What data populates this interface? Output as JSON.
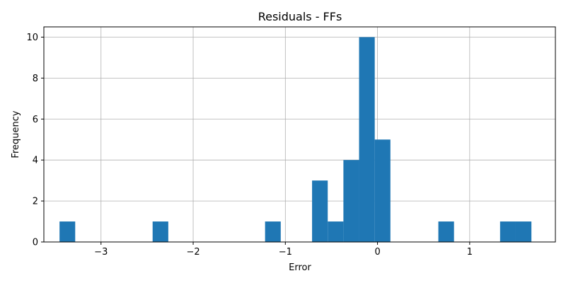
{
  "chart_data": {
    "type": "bar",
    "title": "Residuals - FFs",
    "xlabel": "Error",
    "ylabel": "Frequency",
    "xlim": [
      -3.62,
      1.93
    ],
    "ylim": [
      0,
      10.5
    ],
    "xticks": [
      -3,
      -2,
      -1,
      0,
      1
    ],
    "xtick_labels": [
      "−3",
      "−2",
      "−1",
      "0",
      "1"
    ],
    "yticks": [
      0,
      2,
      4,
      6,
      8,
      10
    ],
    "ytick_labels": [
      "0",
      "2",
      "4",
      "6",
      "8",
      "10"
    ],
    "grid": true,
    "color": "#1f77b4",
    "bins": [
      {
        "x0": -3.45,
        "x1": -3.28,
        "count": 1
      },
      {
        "x0": -2.44,
        "x1": -2.27,
        "count": 1
      },
      {
        "x0": -1.22,
        "x1": -1.05,
        "count": 1
      },
      {
        "x0": -0.71,
        "x1": -0.54,
        "count": 3
      },
      {
        "x0": -0.54,
        "x1": -0.37,
        "count": 1
      },
      {
        "x0": -0.37,
        "x1": -0.2,
        "count": 4
      },
      {
        "x0": -0.2,
        "x1": -0.03,
        "count": 10
      },
      {
        "x0": -0.03,
        "x1": 0.14,
        "count": 5
      },
      {
        "x0": 0.66,
        "x1": 0.83,
        "count": 1
      },
      {
        "x0": 1.33,
        "x1": 1.5,
        "count": 1
      },
      {
        "x0": 1.5,
        "x1": 1.67,
        "count": 1
      }
    ]
  }
}
